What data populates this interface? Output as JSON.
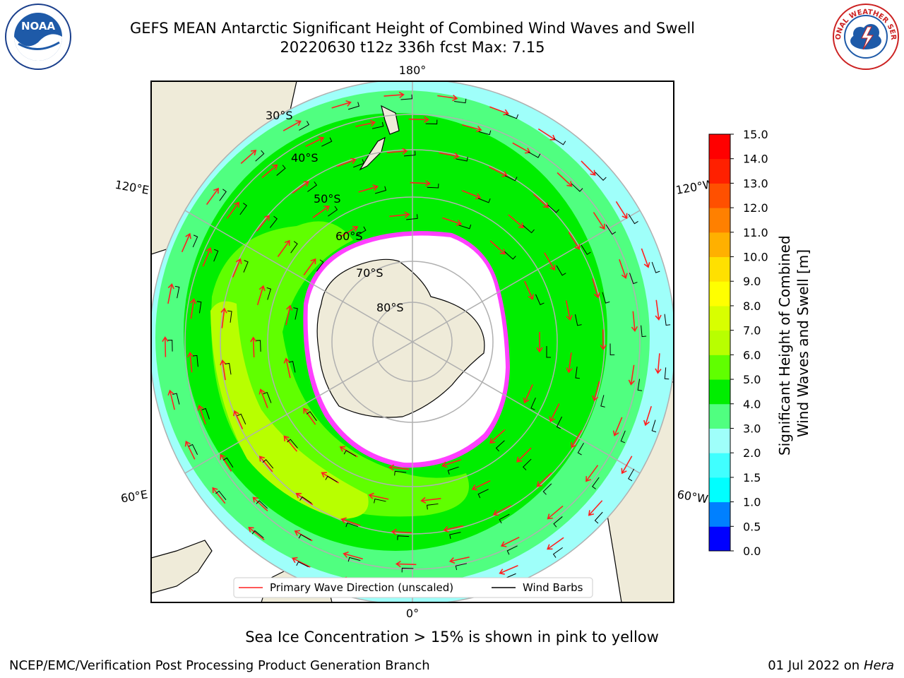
{
  "header": {
    "title_line1": "GEFS MEAN Antarctic Significant Height of Combined Wind Waves and Swell",
    "title_line2": "20220630 t12z 336h fcst   Max: 7.15"
  },
  "logos": {
    "left": {
      "name": "noaa-logo",
      "text": "NOAA"
    },
    "right": {
      "name": "nws-logo",
      "text": "NATIONAL WEATHER SERVICE"
    }
  },
  "map": {
    "projection": "south-polar-stereographic",
    "longitude_labels": {
      "top": "180°",
      "bottom": "0°",
      "upper_left": "120°E",
      "upper_right": "120°W",
      "lower_left": "60°E",
      "lower_right": "60°W"
    },
    "latitude_labels": [
      "30°S",
      "40°S",
      "50°S",
      "60°S",
      "70°S",
      "80°S"
    ],
    "colors": {
      "land": "#efebd9",
      "ice": "#ffffff",
      "grid": "#b0b0b0",
      "wave_arrow": "#ff2020",
      "wind_barb": "#000000"
    },
    "legend": {
      "primary_wave": "Primary Wave Direction (unscaled)",
      "wind_barbs": "Wind Barbs"
    }
  },
  "colorbar": {
    "label_line1": "Significant Height of Combined",
    "label_line2": "Wind Waves and Swell [m]",
    "ticks": [
      "0.0",
      "0.5",
      "1.0",
      "1.5",
      "2.0",
      "3.0",
      "4.0",
      "5.0",
      "6.0",
      "7.0",
      "8.0",
      "9.0",
      "10.0",
      "11.0",
      "12.0",
      "13.0",
      "14.0",
      "15.0"
    ],
    "colors": [
      "#0000ff",
      "#0080ff",
      "#00ffff",
      "#40ffff",
      "#9ffffa",
      "#50ff80",
      "#00ee00",
      "#60ff00",
      "#b8ff00",
      "#d8ff00",
      "#ffff00",
      "#ffe000",
      "#ffb000",
      "#ff8000",
      "#ff5000",
      "#ff2000",
      "#ff0000"
    ]
  },
  "subtitle": "Sea Ice Concentration > 15% is shown in pink to yellow",
  "footer": {
    "left": "NCEP/EMC/Verification Post Processing Product Generation Branch",
    "right_date": "01 Jul 2022 on ",
    "right_host": "Hera"
  }
}
